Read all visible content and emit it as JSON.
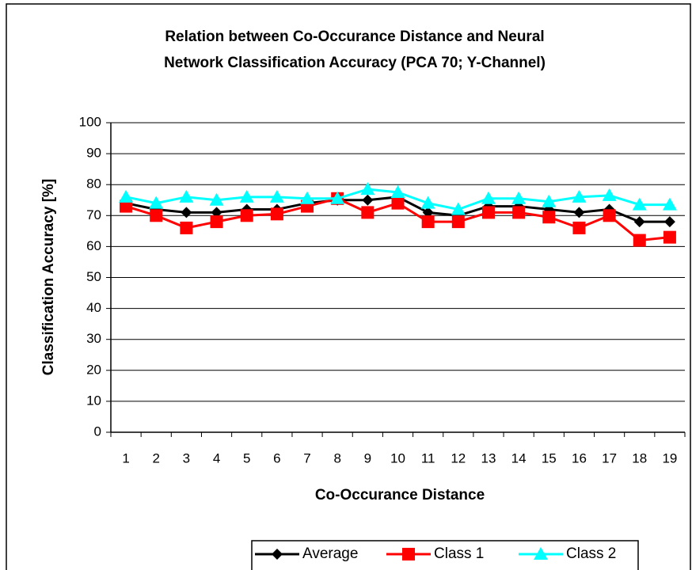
{
  "chart_data": {
    "type": "line",
    "title": [
      "Relation between Co-Occurance Distance and Neural",
      "Network Classification Accuracy (PCA 70; Y-Channel)"
    ],
    "x_label": "Co-Occurance Distance",
    "y_label": "Classification Accuracy [%]",
    "categories": [
      "1",
      "2",
      "3",
      "4",
      "5",
      "6",
      "7",
      "8",
      "9",
      "10",
      "11",
      "12",
      "13",
      "14",
      "15",
      "16",
      "17",
      "18",
      "19"
    ],
    "series": [
      {
        "name": "Average",
        "color": "#000000",
        "marker": "diamond",
        "values": [
          74,
          72,
          71,
          71,
          72,
          72,
          74,
          75,
          75,
          76,
          71,
          70,
          73,
          73,
          72,
          71,
          72,
          68,
          68
        ]
      },
      {
        "name": "Class 1",
        "color": "#ff0000",
        "marker": "square",
        "values": [
          73,
          70,
          66,
          68,
          70,
          70.5,
          73,
          75.5,
          71,
          74,
          68,
          68,
          71,
          71,
          69.5,
          66,
          70,
          62,
          63
        ]
      },
      {
        "name": "Class 2",
        "color": "#00ffff",
        "marker": "triangle",
        "values": [
          76,
          74,
          76,
          75,
          76,
          76,
          75.5,
          75.5,
          78.5,
          77.5,
          74,
          72,
          75.5,
          75.5,
          74.5,
          76,
          76.5,
          73.5,
          73.5
        ]
      }
    ],
    "ylim": [
      0,
      100
    ],
    "yticks": [
      0,
      10,
      20,
      30,
      40,
      50,
      60,
      70,
      80,
      90,
      100
    ],
    "grid": true,
    "legend": "bottom"
  }
}
